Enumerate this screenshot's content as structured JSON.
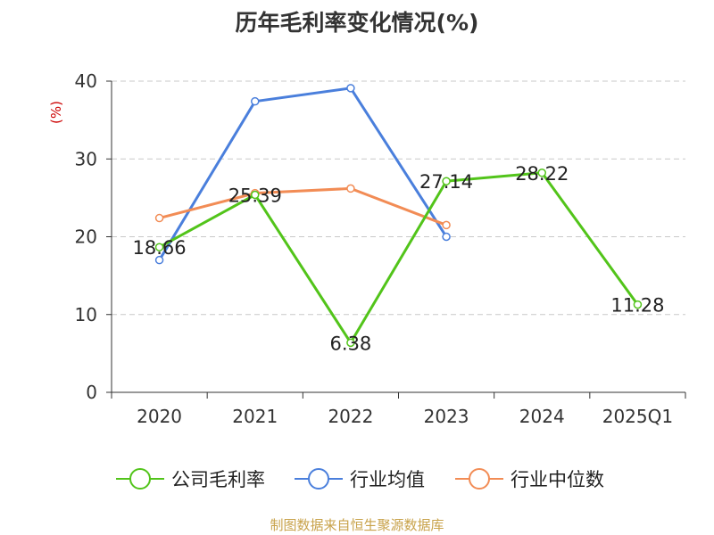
{
  "chart_data": {
    "type": "line",
    "title": "历年毛利率变化情况(%)",
    "ylabel": "(%)",
    "ylim": [
      0,
      40
    ],
    "yticks": [
      0,
      10,
      20,
      30,
      40
    ],
    "categories": [
      "2020",
      "2021",
      "2022",
      "2023",
      "2024",
      "2025Q1"
    ],
    "grid": true,
    "legend_position": "bottom",
    "series": [
      {
        "name": "公司毛利率",
        "color": "#52c41a",
        "values": [
          18.66,
          25.39,
          6.38,
          27.14,
          28.22,
          11.28
        ],
        "show_labels": true
      },
      {
        "name": "行业均值",
        "color": "#4a7fdc",
        "values": [
          17.0,
          37.4,
          39.1,
          20.0,
          null,
          null
        ],
        "show_labels": false
      },
      {
        "name": "行业中位数",
        "color": "#f28c55",
        "values": [
          22.4,
          25.6,
          26.2,
          21.5,
          null,
          null
        ],
        "show_labels": false
      }
    ]
  },
  "source_note": "制图数据来自恒生聚源数据库",
  "colors": {
    "axis": "#333333",
    "grid": "#c8c8c8",
    "ylabel": "#cc0000",
    "source": "#c8a24a"
  }
}
